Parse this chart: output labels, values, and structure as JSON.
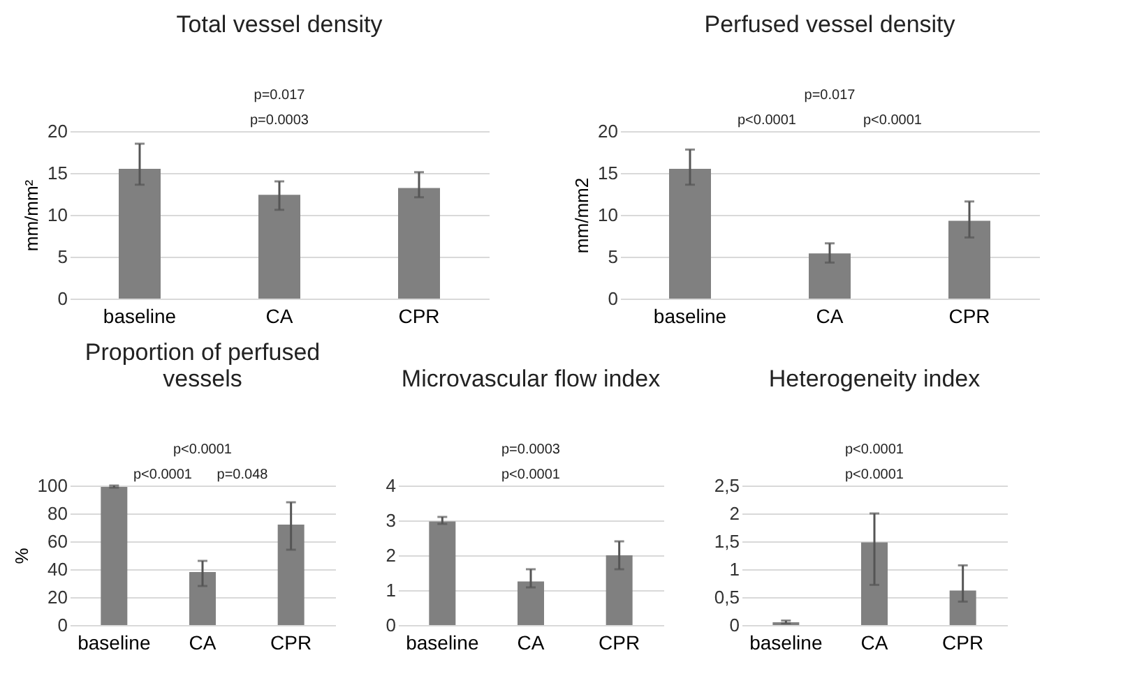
{
  "chart_data": [
    {
      "type": "bar",
      "title": "Total vessel density",
      "ylabel": "mm/mm²",
      "categories": [
        "baseline",
        "CA",
        "CPR"
      ],
      "values": [
        15.5,
        12.4,
        13.2
      ],
      "errors": [
        [
          13.6,
          18.5
        ],
        [
          10.6,
          14.0
        ],
        [
          12.1,
          15.1
        ]
      ],
      "color": "#808080",
      "ylim": [
        0,
        20
      ],
      "yticks": [
        0,
        5,
        10,
        15,
        20
      ],
      "grid": "y",
      "annotations": [
        "p=0.017",
        "p=0.0003"
      ]
    },
    {
      "type": "bar",
      "title": "Perfused vessel density",
      "ylabel": "mm/mm2",
      "categories": [
        "baseline",
        "CA",
        "CPR"
      ],
      "values": [
        15.5,
        5.4,
        9.3
      ],
      "errors": [
        [
          13.6,
          17.8
        ],
        [
          4.3,
          6.6
        ],
        [
          7.3,
          11.6
        ]
      ],
      "color": "#808080",
      "ylim": [
        0,
        20
      ],
      "yticks": [
        0,
        5,
        10,
        15,
        20
      ],
      "grid": "y",
      "annotations": [
        "p=0.017",
        "p<0.0001",
        "p<0.0001"
      ]
    },
    {
      "type": "bar",
      "title": "Proportion of perfused vessels",
      "ylabel": "%",
      "categories": [
        "baseline",
        "CA",
        "CPR"
      ],
      "values": [
        99,
        38,
        72
      ],
      "errors": [
        [
          98.5,
          100
        ],
        [
          28,
          46
        ],
        [
          54,
          88
        ]
      ],
      "color": "#808080",
      "ylim": [
        0,
        100
      ],
      "yticks": [
        0,
        20,
        40,
        60,
        80,
        100
      ],
      "grid": "y",
      "annotations": [
        "p<0.0001",
        "p<0.0001",
        "p=0.048"
      ]
    },
    {
      "type": "bar",
      "title": "Microvascular flow index",
      "categories": [
        "baseline",
        "CA",
        "CPR"
      ],
      "values": [
        2.97,
        1.25,
        2.0
      ],
      "errors": [
        [
          2.9,
          3.1
        ],
        [
          1.08,
          1.6
        ],
        [
          1.6,
          2.4
        ]
      ],
      "color": "#808080",
      "ylim": [
        0,
        4
      ],
      "yticks": [
        0,
        1,
        2,
        3,
        4
      ],
      "grid": "y",
      "annotations": [
        "p=0.0003",
        "p<0.0001"
      ]
    },
    {
      "type": "bar",
      "title": "Heterogeneity index",
      "categories": [
        "baseline",
        "CA",
        "CPR"
      ],
      "values": [
        0.05,
        1.48,
        0.62
      ],
      "errors": [
        [
          0.03,
          0.08
        ],
        [
          0.72,
          2.0
        ],
        [
          0.42,
          1.07
        ]
      ],
      "color": "#808080",
      "ylim": [
        0,
        2.5
      ],
      "yticks": [
        0,
        {
          "value": 0.5,
          "label": "0,5"
        },
        1,
        {
          "value": 1.5,
          "label": "1,5"
        },
        2,
        {
          "value": 2.5,
          "label": "2,5"
        }
      ],
      "grid": "y",
      "annotations": [
        "p<0.0001",
        "p<0.0001"
      ]
    }
  ]
}
